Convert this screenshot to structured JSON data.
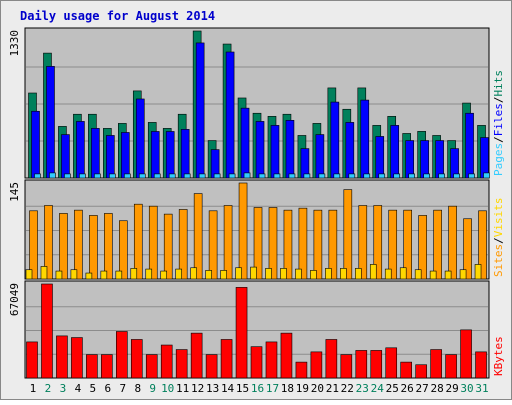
{
  "title": "Daily usage for August 2014",
  "colors": {
    "frame": "#ececec",
    "plot": "#c0c0c0",
    "title": "#0000cc",
    "hits": "#00805c",
    "files": "#0000ff",
    "pages": "#33ccff",
    "visits": "#ff9900",
    "sites": "#ffd700",
    "kbytes": "#ff0000",
    "label_black": "#000000",
    "label_green": "#00805c"
  },
  "chart_data": [
    {
      "type": "bar",
      "panel": "hits",
      "ymax_label": "1330",
      "ymax": 1330,
      "grid": true,
      "legend": [
        {
          "label": "Pages",
          "color": "#33ccff"
        },
        {
          "label": "/",
          "color": "#000000"
        },
        {
          "label": "Files",
          "color": "#0000ff"
        },
        {
          "label": "/",
          "color": "#000000"
        },
        {
          "label": "Hits",
          "color": "#00805c"
        }
      ],
      "categories": [
        "1",
        "2",
        "3",
        "4",
        "5",
        "6",
        "7",
        "8",
        "9",
        "10",
        "11",
        "12",
        "13",
        "14",
        "15",
        "16",
        "17",
        "18",
        "19",
        "20",
        "21",
        "22",
        "23",
        "24",
        "25",
        "26",
        "27",
        "28",
        "29",
        "30",
        "31"
      ],
      "series": [
        {
          "name": "Hits",
          "values": [
            769,
            1130,
            467,
            577,
            577,
            449,
            494,
            788,
            503,
            449,
            577,
            1330,
            339,
            1212,
            724,
            586,
            558,
            577,
            385,
            494,
            815,
            622,
            815,
            476,
            558,
            403,
            422,
            385,
            339,
            678,
            476
          ]
        },
        {
          "name": "Files",
          "values": [
            604,
            1010,
            393,
            512,
            449,
            385,
            412,
            715,
            421,
            421,
            440,
            1222,
            257,
            1140,
            632,
            512,
            476,
            522,
            266,
            393,
            687,
            503,
            705,
            376,
            476,
            339,
            339,
            339,
            266,
            586,
            366
          ]
        },
        {
          "name": "Pages",
          "values": [
            37,
            46,
            37,
            37,
            37,
            37,
            37,
            37,
            37,
            37,
            37,
            37,
            37,
            37,
            46,
            37,
            37,
            37,
            37,
            37,
            37,
            37,
            37,
            37,
            37,
            37,
            37,
            37,
            37,
            37,
            46
          ]
        }
      ]
    },
    {
      "type": "bar",
      "panel": "visits",
      "ymax_label": "145",
      "ymax": 145,
      "grid": true,
      "legend": [
        {
          "label": "Sites",
          "color": "#ff9900"
        },
        {
          "label": "/",
          "color": "#000000"
        },
        {
          "label": "Visits",
          "color": "#ffd700"
        }
      ],
      "categories": [
        "1",
        "2",
        "3",
        "4",
        "5",
        "6",
        "7",
        "8",
        "9",
        "10",
        "11",
        "12",
        "13",
        "14",
        "15",
        "16",
        "17",
        "18",
        "19",
        "20",
        "21",
        "22",
        "23",
        "24",
        "25",
        "26",
        "27",
        "28",
        "29",
        "30",
        "31"
      ],
      "series": [
        {
          "name": "Visits",
          "values": [
            103,
            111,
            99,
            104,
            96,
            99,
            88,
            113,
            110,
            98,
            105,
            129,
            103,
            111,
            145,
            108,
            108,
            104,
            107,
            104,
            104,
            135,
            111,
            111,
            104,
            104,
            96,
            104,
            110,
            91,
            103
          ]
        },
        {
          "name": "Sites",
          "values": [
            14,
            19,
            12,
            14,
            9,
            12,
            12,
            16,
            15,
            12,
            15,
            17,
            13,
            13,
            17,
            18,
            16,
            16,
            15,
            13,
            16,
            16,
            16,
            22,
            15,
            17,
            14,
            12,
            12,
            14,
            22
          ]
        }
      ]
    },
    {
      "type": "bar",
      "panel": "kbytes",
      "ymax_label": "67049",
      "ymax": 67049,
      "grid": true,
      "legend": [
        {
          "label": "KBytes",
          "color": "#ff0000"
        }
      ],
      "categories": [
        "1",
        "2",
        "3",
        "4",
        "5",
        "6",
        "7",
        "8",
        "9",
        "10",
        "11",
        "12",
        "13",
        "14",
        "15",
        "16",
        "17",
        "18",
        "19",
        "20",
        "21",
        "22",
        "23",
        "24",
        "25",
        "26",
        "27",
        "28",
        "29",
        "30",
        "31"
      ],
      "series": [
        {
          "name": "KBytes",
          "values": [
            25733,
            67049,
            30029,
            28853,
            16676,
            16676,
            33171,
            27483,
            16676,
            23512,
            20290,
            32012,
            16676,
            27483,
            64630,
            22336,
            25733,
            32012,
            11340,
            18632,
            27483,
            16676,
            19658,
            19658,
            21538,
            11340,
            9461,
            20290,
            16676,
            34329,
            18632
          ]
        }
      ]
    }
  ],
  "day_labels": [
    {
      "text": "1",
      "weekend": false
    },
    {
      "text": "2",
      "weekend": true
    },
    {
      "text": "3",
      "weekend": true
    },
    {
      "text": "4",
      "weekend": false
    },
    {
      "text": "5",
      "weekend": false
    },
    {
      "text": "6",
      "weekend": false
    },
    {
      "text": "7",
      "weekend": false
    },
    {
      "text": "8",
      "weekend": false
    },
    {
      "text": "9",
      "weekend": true
    },
    {
      "text": "10",
      "weekend": true
    },
    {
      "text": "11",
      "weekend": false
    },
    {
      "text": "12",
      "weekend": false
    },
    {
      "text": "13",
      "weekend": false
    },
    {
      "text": "14",
      "weekend": false
    },
    {
      "text": "15",
      "weekend": false
    },
    {
      "text": "16",
      "weekend": true
    },
    {
      "text": "17",
      "weekend": true
    },
    {
      "text": "18",
      "weekend": false
    },
    {
      "text": "19",
      "weekend": false
    },
    {
      "text": "20",
      "weekend": false
    },
    {
      "text": "21",
      "weekend": false
    },
    {
      "text": "22",
      "weekend": false
    },
    {
      "text": "23",
      "weekend": true
    },
    {
      "text": "24",
      "weekend": true
    },
    {
      "text": "25",
      "weekend": false
    },
    {
      "text": "26",
      "weekend": false
    },
    {
      "text": "27",
      "weekend": false
    },
    {
      "text": "28",
      "weekend": false
    },
    {
      "text": "29",
      "weekend": false
    },
    {
      "text": "30",
      "weekend": true
    },
    {
      "text": "31",
      "weekend": true
    }
  ]
}
